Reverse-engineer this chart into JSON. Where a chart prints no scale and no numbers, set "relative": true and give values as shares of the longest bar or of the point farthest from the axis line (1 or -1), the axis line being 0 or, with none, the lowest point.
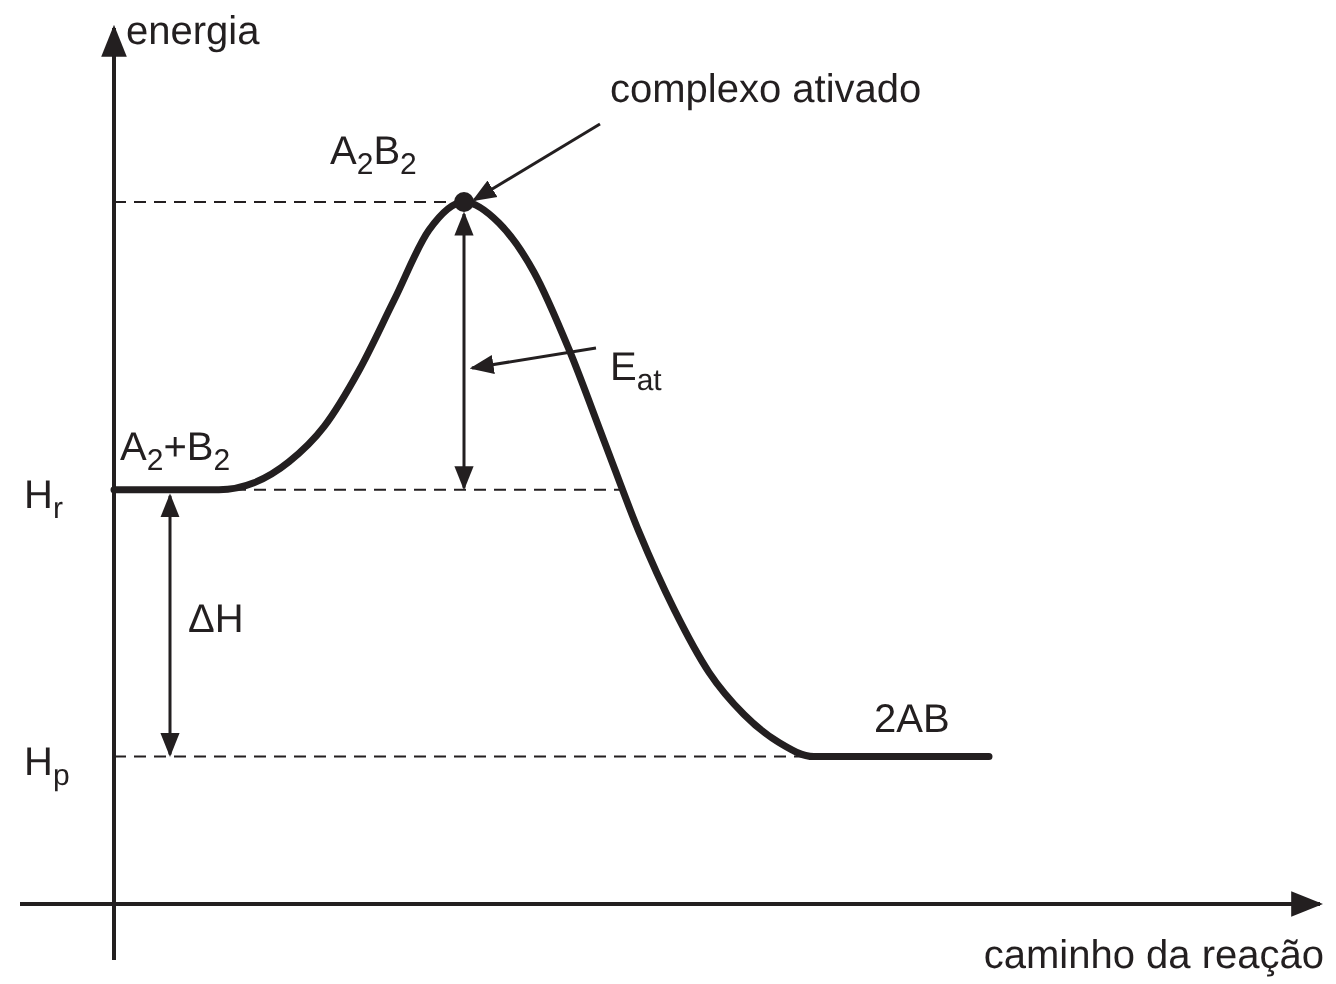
{
  "chart_data": {
    "type": "line",
    "relative": true,
    "xlabel": "caminho da reação",
    "ylabel": "energia",
    "categories": [
      null,
      null,
      null,
      null,
      null,
      null,
      null,
      null,
      null,
      null,
      null,
      null,
      null,
      null,
      null,
      null,
      null,
      null,
      null,
      null,
      null,
      null,
      null,
      null,
      null,
      null
    ],
    "series": [
      {
        "color": "#231f20",
        "values": [
          0.59,
          0.59,
          0.59,
          0.59,
          0.6,
          0.63,
          0.68,
          0.76,
          0.86,
          0.96,
          1,
          0.97,
          0.9,
          0.79,
          0.66,
          0.53,
          0.42,
          0.33,
          0.27,
          0.23,
          0.21,
          0.21,
          0.21,
          0.21,
          0.21,
          0.21
        ]
      }
    ],
    "ref_lines": [
      {
        "axis": "y",
        "value": 0.59,
        "label": "H$_{r}$",
        "line_style": "dashed",
        "color": "#231f20"
      },
      {
        "axis": "y",
        "value": 0.21,
        "label": "H$_{p}$",
        "line_style": "dashed",
        "color": "#231f20"
      },
      {
        "axis": "y",
        "value": 1,
        "line_style": "dashed",
        "color": "#231f20"
      }
    ],
    "annotations": [
      "complexo ativado",
      "A$_{2}$B$_{2}$",
      "E$_{at}$",
      "A$_{2}$+B$_{2}$",
      "ΔH",
      "2AB"
    ]
  }
}
